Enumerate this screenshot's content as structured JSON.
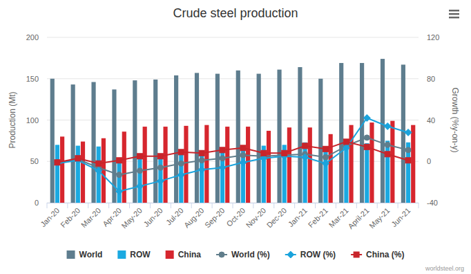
{
  "chart_data": {
    "type": "bar",
    "title": "Crude steel production",
    "y_label": "Production (Mt)",
    "y2_label": "Growth (%y-on-y)",
    "annotations": [
      "worldsteel.org"
    ],
    "categories": [
      "Jan-20",
      "Feb-20",
      "Mar-20",
      "Apr-20",
      "May-20",
      "Jun-20",
      "Jul-20",
      "Aug-20",
      "Sep-20",
      "Oct-20",
      "Nov-20",
      "Dec-20",
      "Jan-21",
      "Feb-21",
      "Mar-21",
      "April-21",
      "May-21",
      "Jun-21"
    ],
    "ylim": [
      0,
      200
    ],
    "yticks": [
      0,
      50,
      100,
      150,
      200
    ],
    "y2lim": [
      -40,
      120
    ],
    "y2ticks": [
      -40,
      0,
      40,
      80,
      120
    ],
    "grid": true,
    "legend": "bottom",
    "series": [
      {
        "name": "World",
        "type": "bar",
        "color": "#5e7d8e",
        "values": [
          150,
          143,
          146,
          137,
          148,
          149,
          154,
          157,
          156,
          160,
          156,
          161,
          164,
          150,
          169,
          169,
          174,
          167
        ]
      },
      {
        "name": "ROW",
        "type": "bar",
        "color": "#1ba9e1",
        "values": [
          70,
          69,
          68,
          51,
          56,
          57,
          61,
          63,
          64,
          68,
          69,
          70,
          73,
          67,
          75,
          72,
          75,
          73
        ]
      },
      {
        "name": "China",
        "type": "bar",
        "color": "#d6262e",
        "values": [
          80,
          74,
          78,
          86,
          92,
          92,
          93,
          94,
          92,
          92,
          87,
          91,
          91,
          83,
          94,
          97,
          99,
          94
        ]
      },
      {
        "name": "World (%)",
        "type": "line",
        "axis": "y2",
        "marker": "circle",
        "color": "#607d8b",
        "values": [
          -1,
          2,
          -6,
          -13,
          -9,
          -6,
          -2,
          1,
          3,
          6,
          5,
          6,
          7,
          4,
          15,
          23,
          16,
          11
        ]
      },
      {
        "name": "ROW (%)",
        "type": "line",
        "axis": "y2",
        "marker": "diamond",
        "color": "#1aa3dc",
        "values": [
          -2,
          1,
          -9,
          -29,
          -24,
          -19,
          -13,
          -8,
          -6,
          -1,
          3,
          5,
          4,
          -2,
          13,
          42,
          34,
          28
        ]
      },
      {
        "name": "China (%)",
        "type": "line",
        "axis": "y2",
        "marker": "square",
        "color": "#c8242a",
        "values": [
          -1,
          3,
          -2,
          1,
          5,
          5,
          9,
          8,
          11,
          13,
          8,
          8,
          15,
          12,
          19,
          14,
          7,
          1
        ]
      }
    ]
  }
}
